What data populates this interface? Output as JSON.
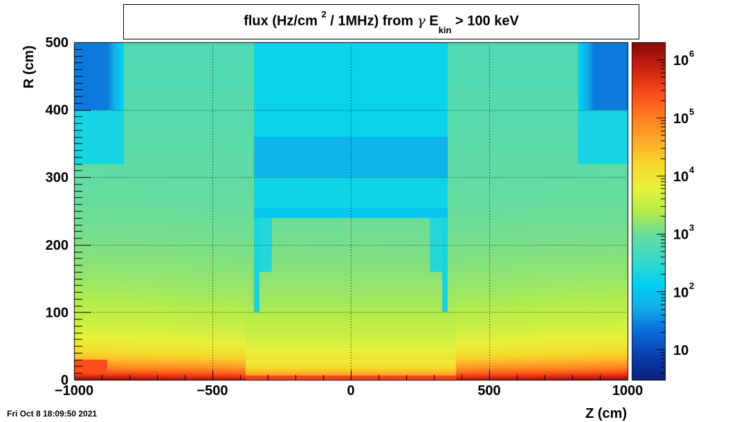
{
  "chart_data": {
    "type": "heatmap",
    "title": {
      "text_1": "flux (Hz/cm",
      "superscript": "2",
      "text_2": "/ 1MHz) from",
      "symbol": "γ",
      "text_3": "E",
      "subscript": "kin",
      "text_4": "> 100 keV"
    },
    "xlabel": "Z (cm)",
    "ylabel": "R (cm)",
    "xlim": [
      -1000,
      1000
    ],
    "ylim": [
      0,
      500
    ],
    "x_ticks": [
      -1000,
      -500,
      0,
      500,
      1000
    ],
    "x_tick_labels": [
      "−1000",
      "−500",
      "0",
      "500",
      "1000"
    ],
    "y_ticks": [
      0,
      100,
      200,
      300,
      400,
      500
    ],
    "y_tick_labels": [
      "0",
      "100",
      "200",
      "300",
      "400",
      "500"
    ],
    "grid": true,
    "z_scale": "log",
    "zlim": [
      3,
      2000000
    ],
    "colorbar_ticks": [
      {
        "value": 10,
        "base": "10",
        "exp": ""
      },
      {
        "value": 100,
        "base": "10",
        "exp": "2"
      },
      {
        "value": 1000,
        "base": "10",
        "exp": "3"
      },
      {
        "value": 10000,
        "base": "10",
        "exp": "4"
      },
      {
        "value": 100000,
        "base": "10",
        "exp": "5"
      },
      {
        "value": 1000000,
        "base": "10",
        "exp": "6"
      }
    ],
    "colormap": "kBird-like",
    "colormap_stops": [
      "#0a1f7a",
      "#0a3fb0",
      "#0a6bd8",
      "#12aeea",
      "#00d2f0",
      "#3ad8c8",
      "#66dca0",
      "#b5ec4a",
      "#e8f23a",
      "#f8d62a",
      "#fda72a",
      "#ff7a1e",
      "#f8461a",
      "#c6200e",
      "#8a0808"
    ],
    "regions": [
      {
        "z": [
          -1000,
          1000
        ],
        "r": [
          0,
          500
        ],
        "flux": 1200,
        "desc": "background"
      },
      {
        "z": [
          -1000,
          -820
        ],
        "r": [
          400,
          500
        ],
        "flux": 30
      },
      {
        "z": [
          820,
          1000
        ],
        "r": [
          400,
          500
        ],
        "flux": 30
      },
      {
        "z": [
          -1000,
          -820
        ],
        "r": [
          320,
          400
        ],
        "flux": 200
      },
      {
        "z": [
          820,
          1000
        ],
        "r": [
          320,
          400
        ],
        "flux": 200
      },
      {
        "z": [
          -350,
          350
        ],
        "r": [
          240,
          360
        ],
        "flux": 150
      },
      {
        "z": [
          -350,
          350
        ],
        "r": [
          300,
          360
        ],
        "flux": 60
      },
      {
        "z": [
          -350,
          -330
        ],
        "r": [
          160,
          360
        ],
        "flux": 200
      },
      {
        "z": [
          330,
          350
        ],
        "r": [
          100,
          360
        ],
        "flux": 200
      },
      {
        "z": [
          -1000,
          1000
        ],
        "r": [
          0,
          8
        ],
        "flux": 400000
      }
    ]
  },
  "footer": {
    "timestamp": "Fri Oct  8 18:09:50 2021"
  }
}
